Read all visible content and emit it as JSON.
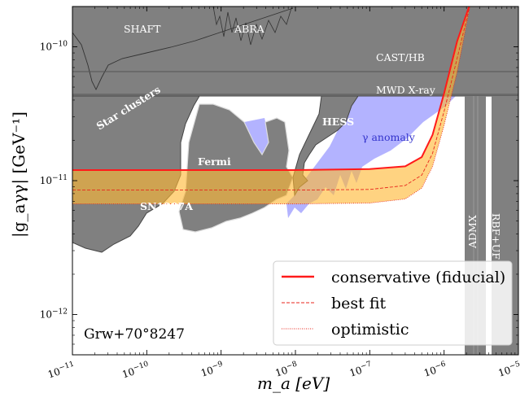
{
  "chart_data": {
    "type": "line",
    "x_scale": "log",
    "y_scale": "log",
    "xlim": [
      1e-11,
      1e-05
    ],
    "ylim": [
      5e-13,
      2e-10
    ],
    "xlabel": "m_a [eV]",
    "ylabel": "|g_aγγ| [GeV⁻¹]",
    "x_ticks": [
      {
        "value": 1e-11,
        "base": "10",
        "exp": "−11"
      },
      {
        "value": 1e-10,
        "base": "10",
        "exp": "−10"
      },
      {
        "value": 1e-09,
        "base": "10",
        "exp": "−9"
      },
      {
        "value": 1e-08,
        "base": "10",
        "exp": "−8"
      },
      {
        "value": 1e-07,
        "base": "10",
        "exp": "−7"
      },
      {
        "value": 1e-06,
        "base": "10",
        "exp": "−6"
      },
      {
        "value": 1e-05,
        "base": "10",
        "exp": "−5"
      }
    ],
    "y_ticks": [
      {
        "value": 1e-12,
        "base": "10",
        "exp": "−12"
      },
      {
        "value": 1e-11,
        "base": "10",
        "exp": "−11"
      },
      {
        "value": 1e-10,
        "base": "10",
        "exp": "−10"
      }
    ],
    "series": [
      {
        "name": "conservative (fiducial)",
        "style": "solid",
        "color": "#ff1a1a",
        "x": [
          1e-11,
          1e-08,
          1e-07,
          3e-07,
          5e-07,
          7e-07,
          1e-06,
          1.5e-06,
          2.3e-06
        ],
        "y": [
          1.2e-11,
          1.2e-11,
          1.22e-11,
          1.28e-11,
          1.5e-11,
          2.2e-11,
          4.5e-11,
          1.1e-10,
          2.2e-10
        ]
      },
      {
        "name": "best fit",
        "style": "dashed",
        "color": "#e8261c",
        "x": [
          1e-11,
          1e-08,
          1e-07,
          3e-07,
          5e-07,
          7e-07,
          1e-06,
          1.5e-06,
          2.3e-06
        ],
        "y": [
          8.5e-12,
          8.5e-12,
          8.6e-12,
          9.2e-12,
          1.1e-11,
          1.6e-11,
          3.3e-11,
          8.2e-11,
          2.2e-10
        ]
      },
      {
        "name": "optimistic",
        "style": "dotted",
        "color": "#e8261c",
        "x": [
          1e-11,
          1e-08,
          1e-07,
          3e-07,
          5e-07,
          7e-07,
          1e-06,
          1.5e-06,
          2.3e-06
        ],
        "y": [
          6.7e-12,
          6.7e-12,
          6.8e-12,
          7.3e-12,
          8.8e-12,
          1.28e-11,
          2.6e-11,
          6.5e-11,
          2.2e-10
        ]
      }
    ],
    "band": {
      "color": "#ffb833",
      "upper_series": "conservative (fiducial)",
      "lower_series": "optimistic"
    },
    "constraint_labels": [
      "SHAFT",
      "ABRA",
      "CAST/HB",
      "MWD X-ray",
      "Star clusters",
      "HESS",
      "Fermi",
      "SN1987A",
      "ADMX",
      "RBF+UF"
    ],
    "anomaly_label": "γ anomaly",
    "anomaly_color": "#3333cc",
    "star_name": "Grw+70°8247",
    "legend_position": "lower right",
    "colors": {
      "excluded": "#808080",
      "excluded_edge": "#444444",
      "anomaly_fill": "#b3b3ff",
      "background": "#ffffff"
    }
  }
}
